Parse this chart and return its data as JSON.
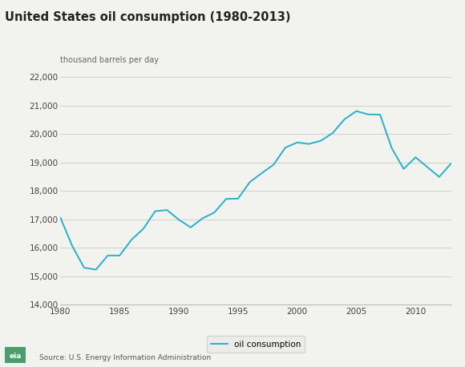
{
  "title": "United States oil consumption (1980-2013)",
  "ylabel": "thousand barrels per day",
  "source": "Source: U.S. Energy Information Administration",
  "line_color": "#2ab0cc",
  "legend_label": "oil consumption",
  "background_color": "#f2f2ee",
  "years": [
    1980,
    1981,
    1982,
    1983,
    1984,
    1985,
    1986,
    1987,
    1988,
    1989,
    1990,
    1991,
    1992,
    1993,
    1994,
    1995,
    1996,
    1997,
    1998,
    1999,
    2000,
    2001,
    2002,
    2003,
    2004,
    2005,
    2006,
    2007,
    2008,
    2009,
    2010,
    2011,
    2012,
    2013
  ],
  "values": [
    17056,
    16058,
    15296,
    15231,
    15726,
    15726,
    16281,
    16665,
    17283,
    17325,
    16988,
    16714,
    17033,
    17237,
    17718,
    17725,
    18309,
    18620,
    18917,
    19519,
    19701,
    19649,
    19761,
    20033,
    20517,
    20802,
    20687,
    20680,
    19490,
    18771,
    19180,
    18835,
    18490,
    18961
  ],
  "ylim": [
    14000,
    22000
  ],
  "xlim": [
    1980,
    2013
  ],
  "yticks": [
    14000,
    15000,
    16000,
    17000,
    18000,
    19000,
    20000,
    21000,
    22000
  ],
  "xticks": [
    1980,
    1985,
    1990,
    1995,
    2000,
    2005,
    2010
  ],
  "title_fontsize": 10.5,
  "label_fontsize": 7,
  "tick_fontsize": 7.5,
  "source_fontsize": 6.5,
  "legend_fontsize": 7.5
}
